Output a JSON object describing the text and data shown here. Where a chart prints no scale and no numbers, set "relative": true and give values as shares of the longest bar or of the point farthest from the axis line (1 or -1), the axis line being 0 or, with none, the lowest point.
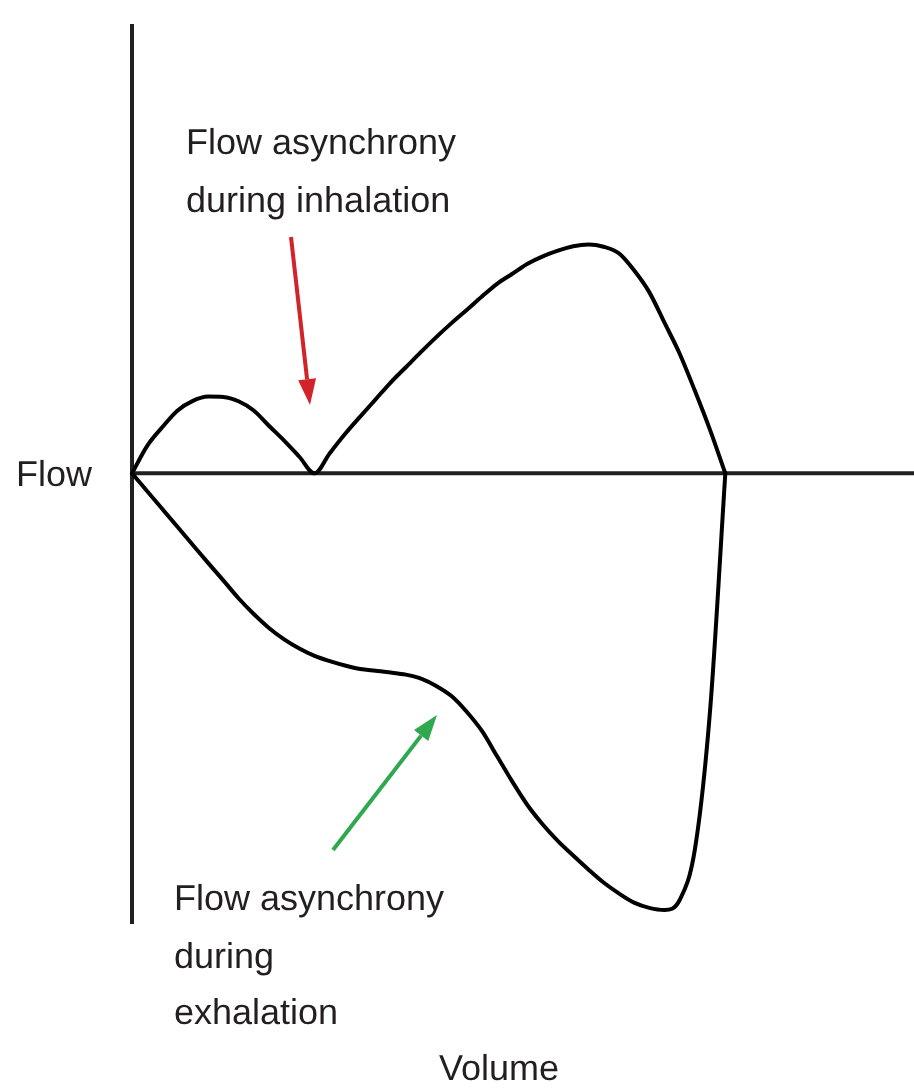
{
  "chart_data": {
    "type": "line",
    "xlabel": "Volume",
    "ylabel": "Flow",
    "annotations": [
      "Flow asynchrony\nduring inhalation",
      "Flow asynchrony\nduring\nexhalation"
    ],
    "categories": [
      null,
      null,
      null,
      null,
      null,
      null,
      null,
      null,
      null,
      null,
      null,
      null,
      null,
      null,
      null,
      null,
      null,
      null,
      null,
      null,
      null,
      null,
      null,
      null,
      null,
      null,
      null,
      null,
      null,
      null,
      null,
      null,
      null,
      null,
      null,
      null,
      null,
      null,
      null,
      null
    ],
    "relative": true,
    "series": [
      {
        "color": "#000000",
        "values": [
          0,
          0.063,
          0.106,
          0.144,
          0.166,
          0.176,
          0.175,
          0.165,
          0.144,
          0.109,
          0.075,
          0.038,
          0,
          0.046,
          0.09,
          0.13,
          0.169,
          0.208,
          0.243,
          0.278,
          0.312,
          0.344,
          0.374,
          0.405,
          0.434,
          0.457,
          0.48,
          0.497,
          0.51,
          0.52,
          0.524,
          0.519,
          0.504,
          0.465,
          0.415,
          0.345,
          0.274,
          0.189,
          0.099,
          0
        ]
      },
      {
        "color": "#000000",
        "values": [
          0,
          -0.041,
          -0.082,
          -0.123,
          -0.164,
          -0.205,
          -0.245,
          -0.286,
          -0.322,
          -0.354,
          -0.38,
          -0.401,
          -0.418,
          -0.43,
          -0.44,
          -0.448,
          -0.452,
          -0.456,
          -0.461,
          -0.47,
          -0.487,
          -0.51,
          -0.546,
          -0.59,
          -0.648,
          -0.706,
          -0.76,
          -0.804,
          -0.842,
          -0.875,
          -0.907,
          -0.937,
          -0.962,
          -0.983,
          -0.995,
          -1,
          -0.977,
          -0.861,
          -0.542,
          0
        ]
      }
    ],
    "marker": "none",
    "line_style": "solid",
    "grid": false,
    "legend": false,
    "tick_labels": false
  }
}
